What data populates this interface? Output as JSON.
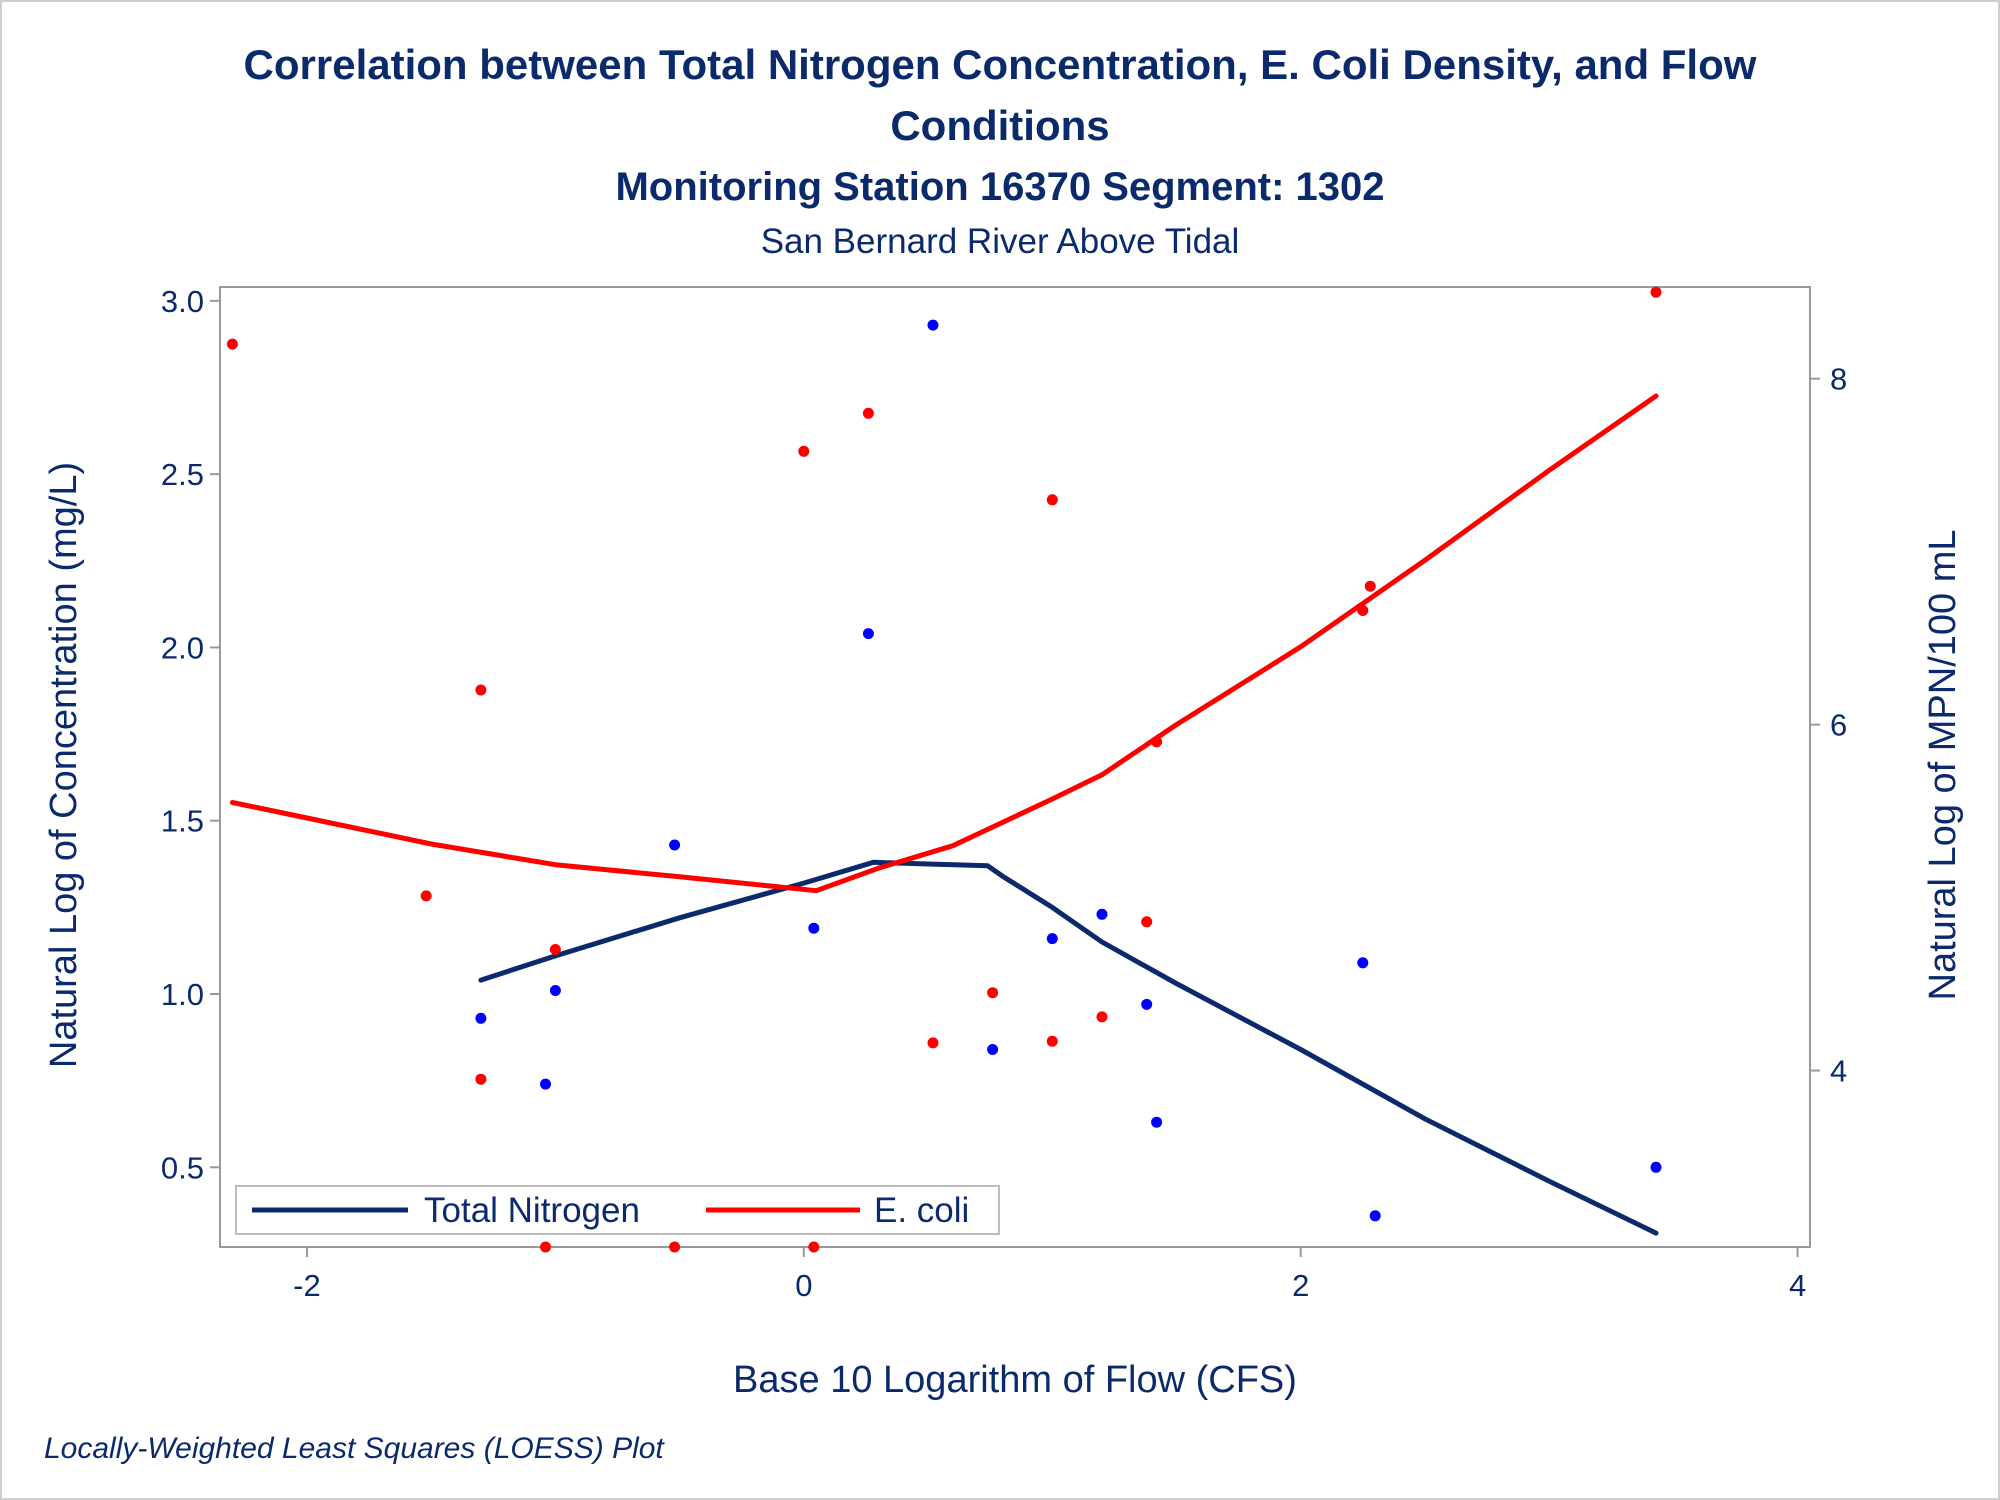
{
  "chart_data": {
    "type": "scatter",
    "title": "Correlation between Total Nitrogen Concentration, E. Coli Density, and Flow",
    "title_line2": "Conditions",
    "subtitle": "Monitoring Station 16370 Segment: 1302",
    "subtitle2": "San Bernard River Above Tidal",
    "footnote": "Locally-Weighted Least Squares (LOESS) Plot",
    "xlabel": "Base 10 Logarithm of Flow (CFS)",
    "ylabel": "Natural Log of Concentration (mg/L)",
    "y2label": "Natural Log of MPN/100 mL",
    "xlim": [
      -2.35,
      4.05
    ],
    "ylim": [
      0.27,
      3.04
    ],
    "y2lim": [
      2.98,
      8.53
    ],
    "xticks": [
      -2,
      0,
      2,
      4
    ],
    "yticks": [
      "0.5",
      "1.0",
      "1.5",
      "2.0",
      "2.5",
      "3.0"
    ],
    "yticks_values": [
      0.5,
      1.0,
      1.5,
      2.0,
      2.5,
      3.0
    ],
    "y2ticks": [
      4,
      6,
      8
    ],
    "legend_position": "bottom-left",
    "grid": false,
    "series": [
      {
        "name": "Total Nitrogen",
        "axis": "y",
        "color": "#0b2a6b",
        "points_color": "#0000ff",
        "points": [
          [
            -1.3,
            0.93
          ],
          [
            -1.04,
            0.74
          ],
          [
            -1.0,
            1.01
          ],
          [
            -0.52,
            1.43
          ],
          [
            0.04,
            1.19
          ],
          [
            0.26,
            2.04
          ],
          [
            0.52,
            2.93
          ],
          [
            0.76,
            0.84
          ],
          [
            1.0,
            1.16
          ],
          [
            1.2,
            1.23
          ],
          [
            1.38,
            0.97
          ],
          [
            1.42,
            0.63
          ],
          [
            2.25,
            1.09
          ],
          [
            2.3,
            0.36
          ],
          [
            3.43,
            0.5
          ]
        ],
        "loess": [
          [
            -1.3,
            1.04
          ],
          [
            -1.0,
            1.11
          ],
          [
            -0.5,
            1.22
          ],
          [
            0.0,
            1.32
          ],
          [
            0.28,
            1.38
          ],
          [
            0.5,
            1.375
          ],
          [
            0.74,
            1.37
          ],
          [
            0.8,
            1.34
          ],
          [
            1.0,
            1.25
          ],
          [
            1.2,
            1.15
          ],
          [
            1.5,
            1.03
          ],
          [
            2.0,
            0.84
          ],
          [
            2.5,
            0.64
          ],
          [
            3.0,
            0.46
          ],
          [
            3.43,
            0.31
          ]
        ]
      },
      {
        "name": "E. coli",
        "axis": "y2",
        "color": "#ff0000",
        "points_color": "#ff0000",
        "points": [
          [
            -2.3,
            8.2
          ],
          [
            -1.52,
            5.01
          ],
          [
            -1.3,
            6.2
          ],
          [
            -1.3,
            3.95
          ],
          [
            -1.04,
            2.98
          ],
          [
            -1.0,
            4.7
          ],
          [
            -0.52,
            2.98
          ],
          [
            0.0,
            7.58
          ],
          [
            0.04,
            2.98
          ],
          [
            0.26,
            7.8
          ],
          [
            0.52,
            4.16
          ],
          [
            0.76,
            4.45
          ],
          [
            1.0,
            4.17
          ],
          [
            1.0,
            7.3
          ],
          [
            1.2,
            4.31
          ],
          [
            1.38,
            4.86
          ],
          [
            1.42,
            5.9
          ],
          [
            2.25,
            6.66
          ],
          [
            2.28,
            6.8
          ],
          [
            3.43,
            8.5
          ]
        ],
        "loess": [
          [
            -2.3,
            5.55
          ],
          [
            -2.0,
            5.46
          ],
          [
            -1.5,
            5.31
          ],
          [
            -1.0,
            5.19
          ],
          [
            -0.5,
            5.12
          ],
          [
            0.05,
            5.04
          ],
          [
            0.3,
            5.17
          ],
          [
            0.6,
            5.3
          ],
          [
            1.0,
            5.57
          ],
          [
            1.2,
            5.71
          ],
          [
            1.5,
            6.0
          ],
          [
            2.0,
            6.45
          ],
          [
            2.5,
            6.95
          ],
          [
            3.0,
            7.47
          ],
          [
            3.43,
            7.9
          ]
        ]
      }
    ]
  }
}
